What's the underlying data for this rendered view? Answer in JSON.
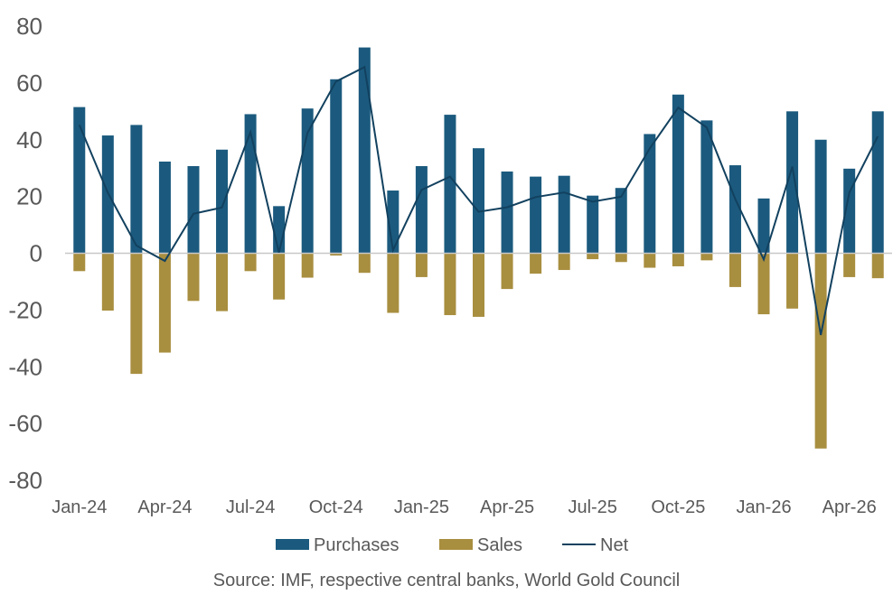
{
  "chart_data": {
    "type": "bar",
    "categories": [
      "Jan-24",
      "Feb-24",
      "Mar-24",
      "Apr-24",
      "May-24",
      "Jun-24",
      "Jul-24",
      "Aug-24",
      "Sep-24",
      "Oct-24",
      "Nov-24",
      "Dec-24",
      "Jan-25",
      "Feb-25",
      "Mar-25",
      "Apr-25",
      "May-25",
      "Jun-25",
      "Jul-25",
      "Aug-25",
      "Sep-25",
      "Oct-25",
      "Nov-25",
      "Dec-25",
      "Jan-26",
      "Feb-26",
      "Mar-26",
      "Apr-26",
      "May-26"
    ],
    "x_tick_labels": [
      "Jan-24",
      "Apr-24",
      "Jul-24",
      "Oct-24",
      "Jan-25",
      "Apr-25",
      "Jul-25",
      "Oct-25",
      "Jan-26",
      "Apr-26"
    ],
    "series": [
      {
        "name": "Purchases",
        "kind": "bar",
        "color": "#1b5a7e",
        "values": [
          51.5,
          41.5,
          45.2,
          32.3,
          30.7,
          36.5,
          49.0,
          16.6,
          51.0,
          61.3,
          72.5,
          22.1,
          30.7,
          48.8,
          37.0,
          28.8,
          27.0,
          27.3,
          20.3,
          23.0,
          42.0,
          55.9,
          46.8,
          31.0,
          19.3,
          50.0,
          40.0,
          29.8,
          50.0
        ]
      },
      {
        "name": "Sales",
        "kind": "bar",
        "color": "#a88e3f",
        "values": [
          -6.3,
          -20.2,
          -42.5,
          -35.0,
          -16.8,
          -20.4,
          -6.3,
          -16.3,
          -8.6,
          -0.8,
          -6.9,
          -21.0,
          -8.4,
          -21.8,
          -22.4,
          -12.6,
          -7.2,
          -5.9,
          -2.1,
          -3.1,
          -5.1,
          -4.6,
          -2.5,
          -11.9,
          -21.5,
          -19.5,
          -68.8,
          -8.4,
          -8.8
        ]
      },
      {
        "name": "Net",
        "kind": "line",
        "color": "#12415f",
        "values": [
          45.2,
          21.3,
          2.7,
          -2.7,
          13.9,
          16.1,
          42.7,
          0.3,
          42.4,
          60.5,
          65.6,
          1.1,
          22.3,
          27.0,
          14.6,
          16.2,
          19.8,
          21.4,
          18.2,
          19.9,
          36.9,
          51.3,
          44.3,
          19.1,
          -2.2,
          30.5,
          -28.8,
          21.4,
          41.2
        ]
      }
    ],
    "ylim": [
      -80,
      80
    ],
    "yticks": [
      80,
      60,
      40,
      20,
      0,
      -20,
      -40,
      -60,
      -80
    ],
    "grid": false,
    "legend_position": "bottom",
    "title": "",
    "xlabel": "",
    "ylabel": ""
  },
  "source": "Source: IMF, respective central banks, World Gold Council"
}
